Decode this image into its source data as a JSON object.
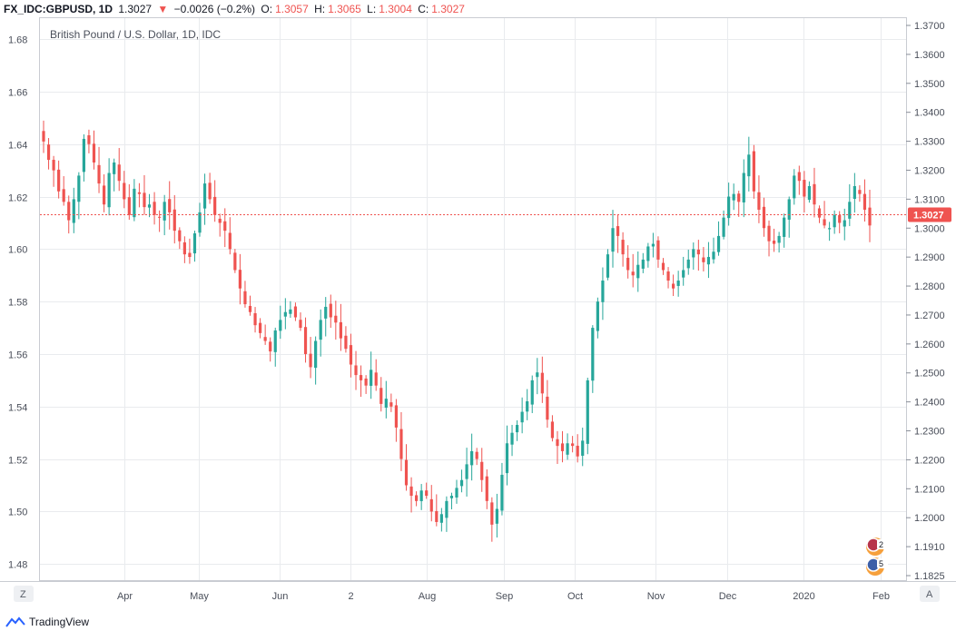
{
  "header": {
    "symbol": "FX_IDC:GBPUSD, 1D",
    "last": "1.3027",
    "change_arrow": "▼",
    "change": "−0.0026 (−0.2%)",
    "open_label": "O:",
    "open": "1.3057",
    "high_label": "H:",
    "high": "1.3065",
    "low_label": "L:",
    "low": "1.3004",
    "close_label": "C:",
    "close": "1.3027"
  },
  "footer": {
    "brand": "TradingView"
  },
  "axis_buttons": {
    "left": "Z",
    "right": "A"
  },
  "badges": {
    "uk_events": "2",
    "us_events": "5"
  },
  "colors": {
    "up": "#26a69a",
    "down": "#ef5350",
    "grid": "#e9ebee",
    "price_line": "#ef5350"
  },
  "chart_data": {
    "type": "candlestick",
    "title": "British Pound / U.S. Dollar, 1D, IDC",
    "y_left_ticks": [
      "1.68",
      "1.66",
      "1.64",
      "1.62",
      "1.60",
      "1.58",
      "1.56",
      "1.54",
      "1.52",
      "1.50",
      "1.48"
    ],
    "y_right_ticks": [
      "1.3700",
      "1.3600",
      "1.3500",
      "1.3400",
      "1.3300",
      "1.3200",
      "1.3100",
      "1.3000",
      "1.2900",
      "1.2800",
      "1.2700",
      "1.2600",
      "1.2500",
      "1.2400",
      "1.2300",
      "1.2200",
      "1.2100",
      "1.2000",
      "1.1910",
      "1.1825"
    ],
    "x_ticks": [
      "Apr",
      "May",
      "Jun",
      "2",
      "Aug",
      "Sep",
      "Oct",
      "Nov",
      "Dec",
      "2020",
      "Feb"
    ],
    "last_price": "1.3027",
    "closes": [
      1.641,
      1.634,
      1.63,
      1.622,
      1.618,
      1.611,
      1.619,
      1.628,
      1.642,
      1.64,
      1.633,
      1.625,
      1.617,
      1.629,
      1.633,
      1.626,
      1.619,
      1.613,
      1.623,
      1.621,
      1.616,
      1.617,
      1.613,
      1.612,
      1.618,
      1.614,
      1.607,
      1.603,
      1.598,
      1.597,
      1.606,
      1.614,
      1.625,
      1.619,
      1.613,
      1.61,
      1.607,
      1.6,
      1.592,
      1.585,
      1.579,
      1.576,
      1.571,
      1.568,
      1.565,
      1.561,
      1.569,
      1.573,
      1.576,
      1.577,
      1.574,
      1.57,
      1.56,
      1.555,
      1.565,
      1.573,
      1.578,
      1.574,
      1.572,
      1.566,
      1.562,
      1.556,
      1.552,
      1.55,
      1.548,
      1.554,
      1.548,
      1.541,
      1.543,
      1.54,
      1.532,
      1.52,
      1.51,
      1.506,
      1.504,
      1.508,
      1.506,
      1.5,
      1.496,
      1.499,
      1.504,
      1.506,
      1.509,
      1.512,
      1.518,
      1.523,
      1.52,
      1.512,
      1.504,
      1.495,
      1.501,
      1.514,
      1.526,
      1.53,
      1.533,
      1.538,
      1.542,
      1.55,
      1.553,
      1.545,
      1.535,
      1.528,
      1.525,
      1.523,
      1.526,
      1.525,
      1.521,
      1.527,
      1.55,
      1.57,
      1.58,
      1.588,
      1.598,
      1.608,
      1.605,
      1.598,
      1.592,
      1.59,
      1.594,
      1.596,
      1.601,
      1.602,
      1.596,
      1.592,
      1.588,
      1.585,
      1.588,
      1.592,
      1.596,
      1.6,
      1.598,
      1.595,
      1.597,
      1.599,
      1.605,
      1.612,
      1.62,
      1.621,
      1.618,
      1.629,
      1.636,
      1.622,
      1.615,
      1.608,
      1.603,
      1.602,
      1.605,
      1.612,
      1.619,
      1.628,
      1.626,
      1.62,
      1.624,
      1.617,
      1.612,
      1.609,
      1.608,
      1.613,
      1.61,
      1.611,
      1.618,
      1.624,
      1.621,
      1.615,
      1.609
    ]
  }
}
